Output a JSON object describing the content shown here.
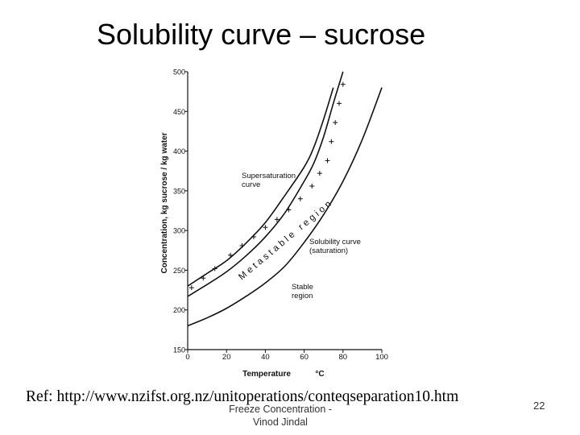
{
  "slide": {
    "title": "Solubility curve – sucrose",
    "reference": "Ref: http://www.nzifst.org.nz/unitoperations/conteqseparation10.htm",
    "footer_line1": "Freeze Concentration -",
    "footer_line2": "Vinod Jindal",
    "page_number": "22"
  },
  "chart_data": {
    "type": "line",
    "xlabel": "Temperature",
    "xunit": "°C",
    "ylabel": "Concentration,  kg sucrose / kg water",
    "xlim": [
      0,
      100
    ],
    "ylim": [
      150,
      500
    ],
    "x_ticks": [
      0,
      20,
      40,
      60,
      80,
      100
    ],
    "y_ticks": [
      150,
      200,
      250,
      300,
      350,
      400,
      450,
      500
    ],
    "series": [
      {
        "name": "Solubility curve (saturation)",
        "x": [
          0,
          10,
          20,
          30,
          40,
          50,
          60,
          70,
          80,
          90,
          100
        ],
        "y": [
          180,
          190,
          202,
          217,
          234,
          255,
          285,
          320,
          362,
          415,
          480
        ]
      },
      {
        "name": "Supersaturation curve",
        "x": [
          0,
          10,
          20,
          30,
          40,
          50,
          60,
          65,
          70,
          75,
          80
        ],
        "y": [
          217,
          232,
          248,
          268,
          292,
          322,
          362,
          385,
          418,
          460,
          500
        ]
      },
      {
        "name": "",
        "x": [
          0,
          10,
          20,
          30,
          40,
          50,
          60,
          65,
          70,
          75
        ],
        "y": [
          230,
          246,
          262,
          284,
          310,
          344,
          380,
          405,
          440,
          480
        ]
      }
    ],
    "experimental_points": {
      "x": [
        2,
        8,
        14,
        22,
        28,
        34,
        40,
        46,
        52,
        58,
        64,
        68,
        72,
        74,
        76,
        78,
        80
      ],
      "y": [
        228,
        240,
        252,
        269,
        281,
        292,
        304,
        314,
        326,
        340,
        356,
        372,
        388,
        412,
        436,
        460,
        484
      ]
    },
    "annotations": [
      {
        "lines": [
          "Supersaturation",
          "curve"
        ]
      },
      {
        "lines": [
          "Solubility curve",
          "(saturation)"
        ]
      },
      {
        "lines": [
          "Stable",
          "region"
        ]
      },
      {
        "lines": [
          "Metastable region"
        ]
      }
    ]
  }
}
